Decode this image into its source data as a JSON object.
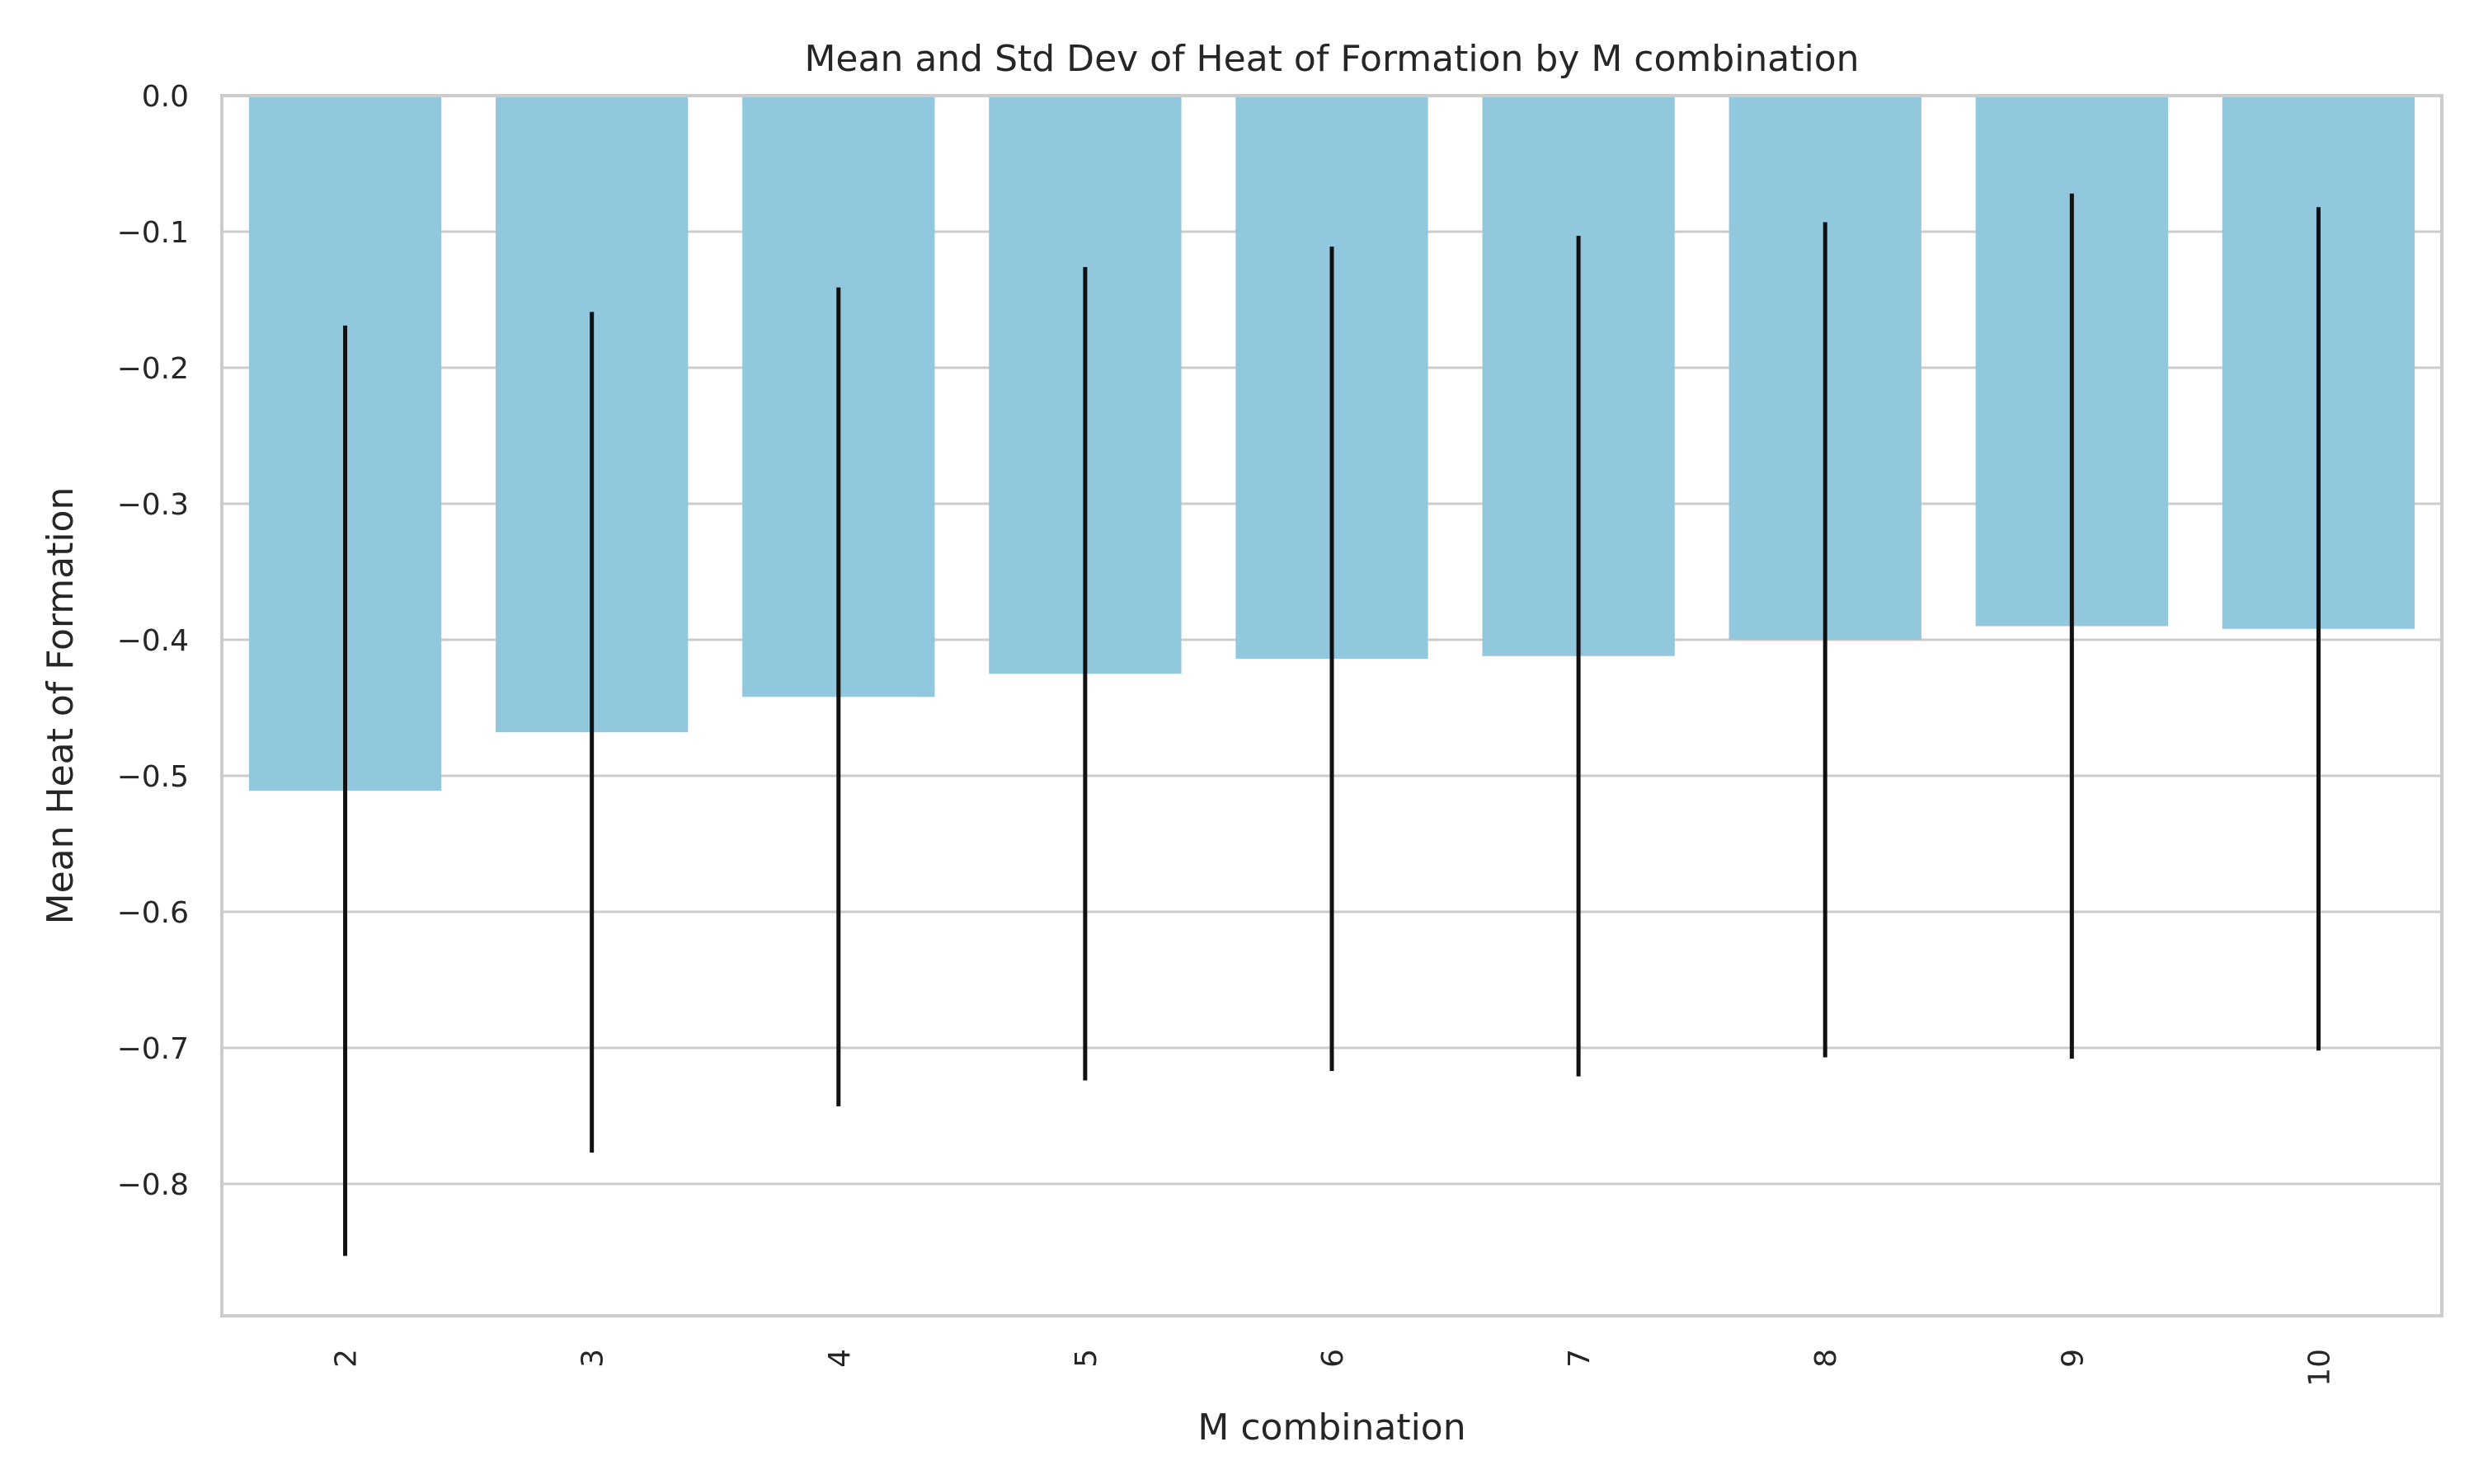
{
  "chart_data": {
    "type": "bar",
    "title": "Mean and Std Dev of Heat of Formation by M combination",
    "xlabel": "M combination",
    "ylabel": "Mean Heat of Formation",
    "categories": [
      "2",
      "3",
      "4",
      "5",
      "6",
      "7",
      "8",
      "9",
      "10"
    ],
    "values": [
      -0.511,
      -0.468,
      -0.442,
      -0.425,
      -0.414,
      -0.412,
      -0.4,
      -0.39,
      -0.392
    ],
    "error": [
      0.342,
      0.309,
      0.301,
      0.299,
      0.303,
      0.309,
      0.307,
      0.318,
      0.31
    ],
    "ylim": [
      -0.897,
      0.0
    ],
    "yticks": [
      0.0,
      -0.1,
      -0.2,
      -0.3,
      -0.4,
      -0.5,
      -0.6,
      -0.7,
      -0.8
    ],
    "ytick_labels": [
      "0.0",
      "−0.1",
      "−0.2",
      "−0.3",
      "−0.4",
      "−0.5",
      "−0.6",
      "−0.7",
      "−0.8"
    ],
    "grid": true,
    "colors": {
      "bar": "#92c8de",
      "error": "#111111",
      "grid": "#cccccc"
    }
  }
}
